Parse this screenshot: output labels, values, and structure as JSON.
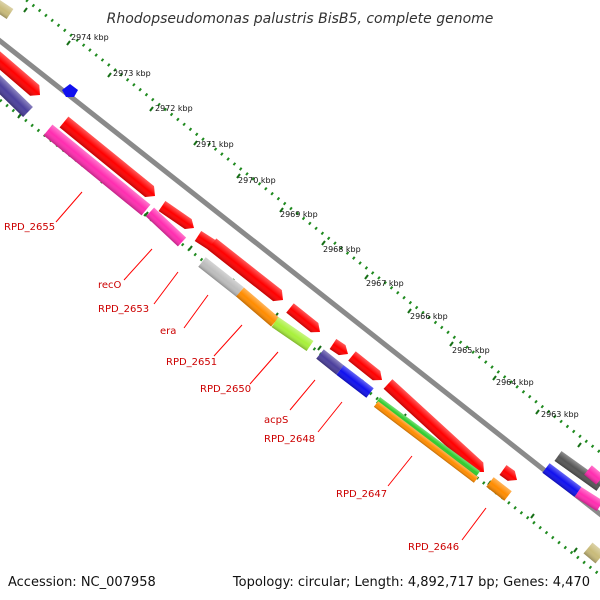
{
  "title": "Rhodopseudomonas palustris BisB5, complete genome",
  "footer": {
    "accession": "Accession: NC_007958",
    "summary": "Topology: circular; Length: 4,892,717 bp; Genes: 4,470"
  },
  "scale_ticks": [
    "2974 kbp",
    "2973 kbp",
    "2972 kbp",
    "2971 kbp",
    "2970 kbp",
    "2969 kbp",
    "2968 kbp",
    "2967 kbp",
    "2966 kbp",
    "2965 kbp",
    "2964 kbp",
    "2963 kbp"
  ],
  "gene_labels": [
    "RPD_2655",
    "recO",
    "RPD_2653",
    "era",
    "RPD_2651",
    "RPD_2650",
    "acpS",
    "RPD_2648",
    "RPD_2647",
    "RPD_2646"
  ],
  "colors": {
    "cds": "#ff0000",
    "label": "#cc0000",
    "backbone": "#8a8a8a",
    "tick_dots": "#1f8a1f",
    "magenta": "#ff2db0",
    "navy": "#4b3f9c",
    "blue": "#1010ee",
    "orange": "#ff8c00",
    "lime": "#a8f03a",
    "green": "#2ecc2e",
    "silver": "#bdbdbd",
    "olive": "#c9bb7a",
    "dark_gray": "#555555"
  }
}
